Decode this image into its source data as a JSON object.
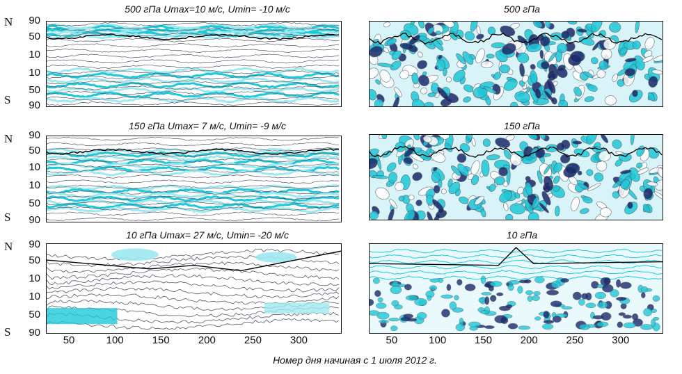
{
  "chart_data": [
    {
      "type": "heatmap",
      "title": "500 гПа  Umax=10 м/с, Umin= -10 м/с",
      "yticks": [
        "90",
        "50",
        "10",
        "10",
        "50",
        "90"
      ],
      "hemispheres": [
        "N",
        "S"
      ],
      "style": "zonal-bands",
      "xrange": [
        25,
        345
      ],
      "ylim": [
        -90,
        90
      ]
    },
    {
      "type": "heatmap",
      "title": "500 гПа",
      "style": "wave-pattern",
      "xrange": [
        25,
        345
      ],
      "ylim": [
        -90,
        90
      ]
    },
    {
      "type": "heatmap",
      "title": "150 гПа  Umax= 7 м/с, Umin= -9 м/с",
      "yticks": [
        "90",
        "50",
        "10",
        "10",
        "50",
        "90"
      ],
      "hemispheres": [
        "N",
        "S"
      ],
      "style": "zonal-bands",
      "xrange": [
        25,
        345
      ],
      "ylim": [
        -90,
        90
      ]
    },
    {
      "type": "heatmap",
      "title": "150 гПа",
      "style": "wave-pattern",
      "xrange": [
        25,
        345
      ],
      "ylim": [
        -90,
        90
      ]
    },
    {
      "type": "heatmap",
      "title": "10 гПа  Umax= 27 м/с, Umin= -20 м/с",
      "yticks": [
        "90",
        "50",
        "10",
        "10",
        "50",
        "90"
      ],
      "hemispheres": [
        "N",
        "S"
      ],
      "style": "stratosphere",
      "xrange": [
        25,
        345
      ],
      "ylim": [
        -90,
        90
      ]
    },
    {
      "type": "heatmap",
      "title": "10 гПа",
      "style": "stratosphere-wave",
      "xrange": [
        25,
        345
      ],
      "ylim": [
        -90,
        90
      ]
    }
  ],
  "xticks": [
    "50",
    "100",
    "150",
    "200",
    "250",
    "300"
  ],
  "xtick_values": [
    50,
    100,
    150,
    200,
    250,
    300
  ],
  "xlabel": "Номер дня  начиная с 1 июля 2012 г.",
  "colors": {
    "cyan": "#1ec8d8",
    "light_cyan": "#9ee8f0",
    "dark_blue": "#1a2a6a",
    "gray_contour": "#555566",
    "black_line": "#000000"
  }
}
